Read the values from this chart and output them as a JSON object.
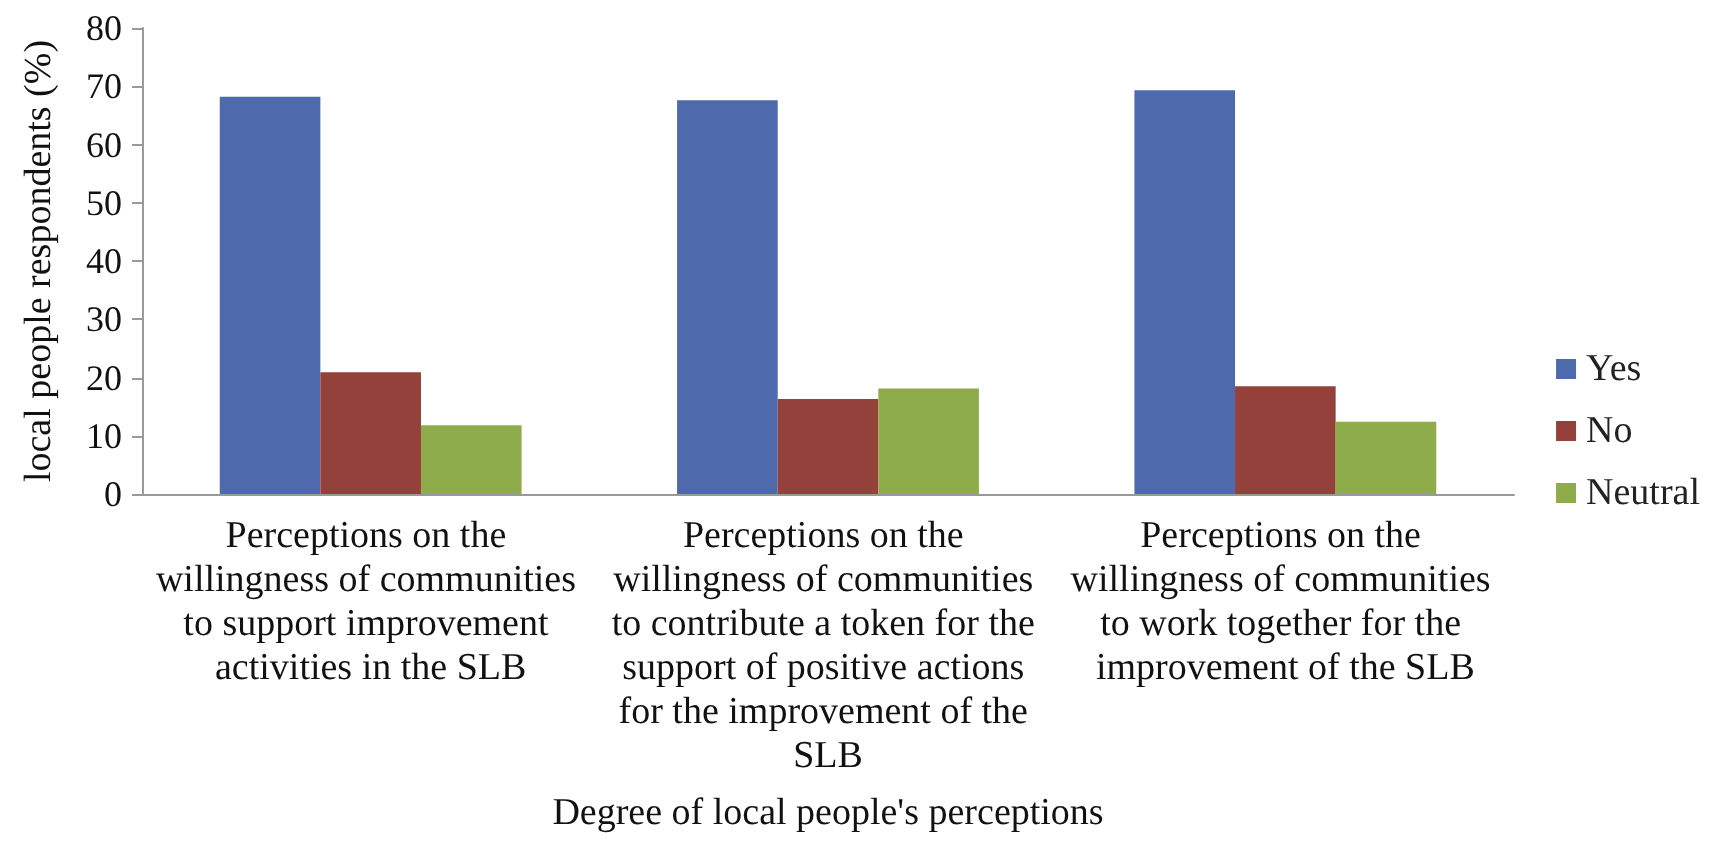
{
  "chart_data": {
    "type": "bar",
    "categories": [
      "Perceptions on the willingness of communities to support improvement activities in the SLB",
      "Perceptions on the willingness of communities to contribute a token for the support of positive actions for the improvement of the SLB",
      "Perceptions on the willingness of communities to work together for the improvement of the SLB"
    ],
    "series": [
      {
        "name": "Yes",
        "color": "#4f69ad",
        "values": [
          68.2,
          67.6,
          69.3
        ]
      },
      {
        "name": "No",
        "color": "#94413b",
        "values": [
          20.9,
          16.3,
          18.5
        ]
      },
      {
        "name": "Neutral",
        "color": "#8eac49",
        "values": [
          11.8,
          18.1,
          12.4
        ]
      }
    ],
    "xlabel": "Degree of local people's perceptions",
    "ylabel": "local people respondents (%)",
    "ylim": [
      0,
      80
    ],
    "yticks": [
      0,
      10,
      20,
      30,
      40,
      50,
      60,
      70,
      80
    ],
    "grid": false,
    "legend": "right"
  }
}
